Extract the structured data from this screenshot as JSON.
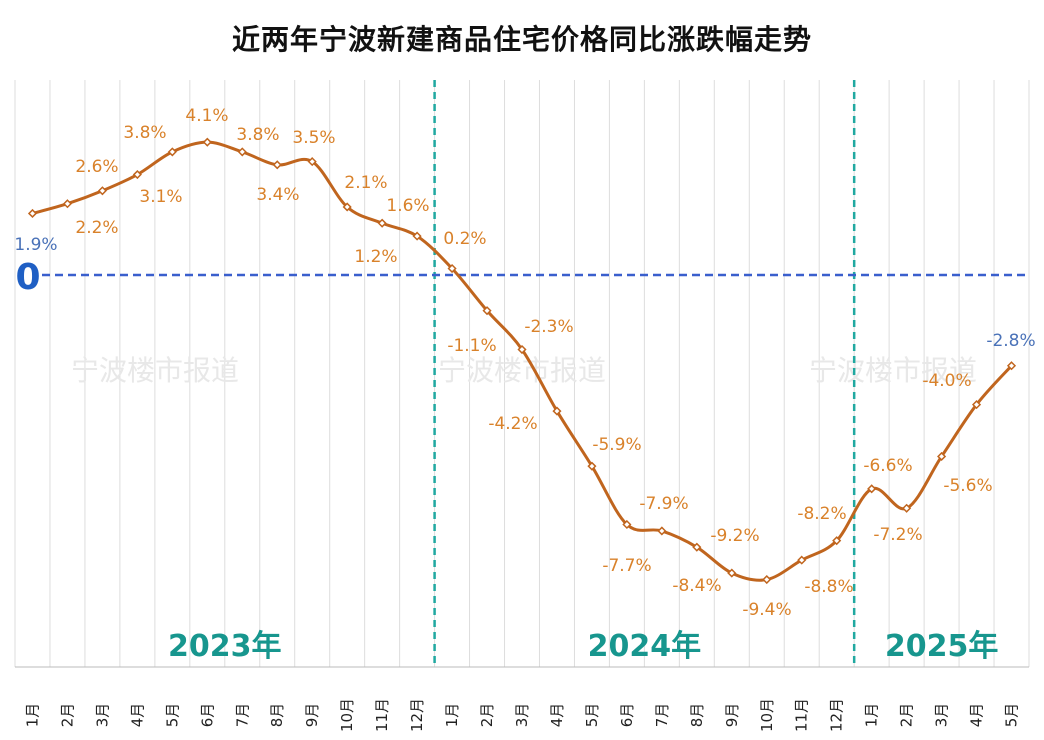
{
  "title": "近两年宁波新建商品住宅价格同比涨跌幅走势",
  "watermark": "宁波楼市报道",
  "colors": {
    "line": "#C0651E",
    "label": "#D9822B",
    "label_highlight": "#4A72B8",
    "zero_line": "#3A5FCD",
    "year_divider": "#20A8A0",
    "year_text": "#17968E"
  },
  "chart_data": {
    "type": "line",
    "title": "近两年宁波新建商品住宅价格同比涨跌幅走势",
    "xlabel": "",
    "ylabel": "",
    "zero_label": "0",
    "categories": [
      "1月",
      "2月",
      "3月",
      "4月",
      "5月",
      "6月",
      "7月",
      "8月",
      "9月",
      "10月",
      "11月",
      "12月",
      "1月",
      "2月",
      "3月",
      "4月",
      "5月",
      "6月",
      "7月",
      "8月",
      "9月",
      "10月",
      "11月",
      "12月",
      "1月",
      "2月",
      "3月",
      "4月",
      "5月"
    ],
    "years": [
      {
        "label": "2023年",
        "start": 0,
        "end": 11
      },
      {
        "label": "2024年",
        "start": 12,
        "end": 23
      },
      {
        "label": "2025年",
        "start": 24,
        "end": 28
      }
    ],
    "series": [
      {
        "values": [
          1.9,
          2.2,
          2.6,
          3.1,
          3.8,
          4.1,
          3.8,
          3.4,
          3.5,
          2.1,
          1.6,
          1.2,
          0.2,
          -1.1,
          -2.3,
          -4.2,
          -5.9,
          -7.7,
          -7.9,
          -8.4,
          -9.2,
          -9.4,
          -8.8,
          -8.2,
          -6.6,
          -7.2,
          -5.6,
          -4.0,
          -2.8
        ]
      }
    ],
    "data_labels": [
      "1.9%",
      "2.2%",
      "2.6%",
      "3.1%",
      "3.8%",
      "4.1%",
      "3.8%",
      "3.4%",
      "3.5%",
      "2.1%",
      "1.6%",
      "1.2%",
      "0.2%",
      "-1.1%",
      "-2.3%",
      "-4.2%",
      "-5.9%",
      "-7.7%",
      "-7.9%",
      "-8.4%",
      "-9.2%",
      "-9.4%",
      "-8.8%",
      "-8.2%",
      "-6.6%",
      "-7.2%",
      "-5.6%",
      "-4.0%",
      "-2.8%"
    ],
    "highlight_labels": [
      0,
      28
    ],
    "ylim": [
      -12,
      6
    ],
    "grid": "vertical",
    "legend": "none"
  }
}
